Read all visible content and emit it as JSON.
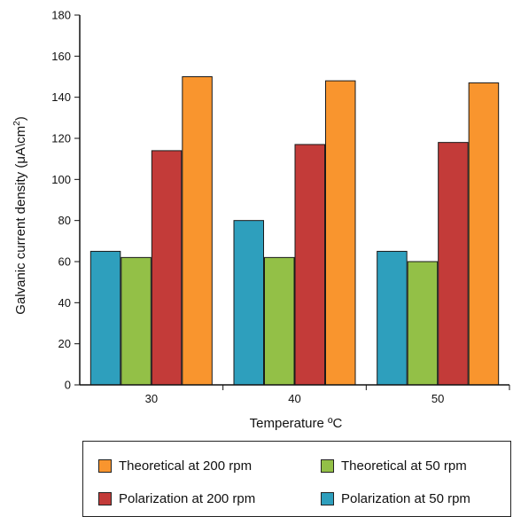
{
  "chart_data": {
    "type": "bar",
    "categories": [
      "30",
      "40",
      "50"
    ],
    "xlabel": "Temperature ºC",
    "ylabel_main": "Galvanic current density (μA\\cm",
    "ylabel_sup": "2",
    "ylabel_end": ")",
    "ylim": [
      0,
      180
    ],
    "yticks": [
      "0",
      "20",
      "40",
      "60",
      "80",
      "100",
      "120",
      "140",
      "160",
      "180"
    ],
    "grid": false,
    "legend_position": "bottom",
    "series": [
      {
        "name": "Polarization at 50 rpm",
        "color": "#2e9fbd",
        "values": [
          65,
          80,
          65
        ]
      },
      {
        "name": "Theoretical at 50 rpm",
        "color": "#93c047",
        "values": [
          62,
          62,
          60
        ]
      },
      {
        "name": "Polarization at 200 rpm",
        "color": "#c33b39",
        "values": [
          114,
          117,
          118
        ]
      },
      {
        "name": "Theoretical at 200 rpm",
        "color": "#f9952e",
        "values": [
          150,
          148,
          147
        ]
      }
    ]
  }
}
